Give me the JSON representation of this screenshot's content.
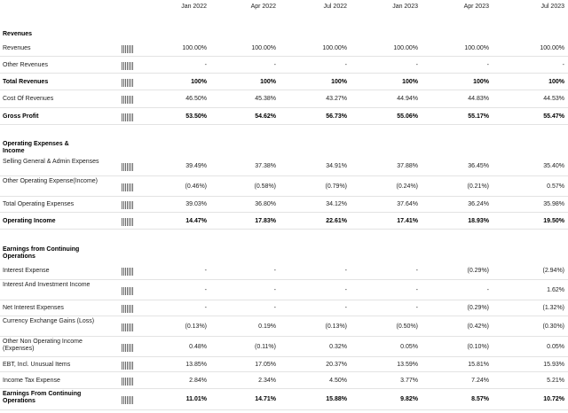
{
  "columns": [
    "Jan 2022",
    "Apr 2022",
    "Jul 2022",
    "Jan 2023",
    "Apr 2023",
    "Jul 2023"
  ],
  "sections": [
    {
      "title": "Revenues",
      "rows": [
        {
          "label": "Revenues",
          "values": [
            "100.00%",
            "100.00%",
            "100.00%",
            "100.00%",
            "100.00%",
            "100.00%"
          ],
          "bold": false
        },
        {
          "label": "Other Revenues",
          "values": [
            "-",
            "-",
            "-",
            "-",
            "-",
            "-"
          ],
          "bold": false
        },
        {
          "label": "Total Revenues",
          "values": [
            "100%",
            "100%",
            "100%",
            "100%",
            "100%",
            "100%"
          ],
          "bold": true
        },
        {
          "label": "Cost Of Revenues",
          "values": [
            "46.50%",
            "45.38%",
            "43.27%",
            "44.94%",
            "44.83%",
            "44.53%"
          ],
          "bold": false
        },
        {
          "label": "Gross Profit",
          "values": [
            "53.50%",
            "54.62%",
            "56.73%",
            "55.06%",
            "55.17%",
            "55.47%"
          ],
          "bold": true
        }
      ]
    },
    {
      "title": "Operating Expenses & Income",
      "rows": [
        {
          "label": "Selling General & Admin Expenses",
          "values": [
            "39.49%",
            "37.38%",
            "34.91%",
            "37.88%",
            "36.45%",
            "35.40%"
          ],
          "bold": false
        },
        {
          "label": "Other Operating Expense(Income)",
          "values": [
            "(0.46%)",
            "(0.58%)",
            "(0.79%)",
            "(0.24%)",
            "(0.21%)",
            "0.57%"
          ],
          "bold": false
        },
        {
          "label": "Total Operating Expenses",
          "values": [
            "39.03%",
            "36.80%",
            "34.12%",
            "37.64%",
            "36.24%",
            "35.98%"
          ],
          "bold": false
        },
        {
          "label": "Operating Income",
          "values": [
            "14.47%",
            "17.83%",
            "22.61%",
            "17.41%",
            "18.93%",
            "19.50%"
          ],
          "bold": true
        }
      ]
    },
    {
      "title": "Earnings from Continuing Operations",
      "rows": [
        {
          "label": "Interest Expense",
          "values": [
            "-",
            "-",
            "-",
            "-",
            "(0.29%)",
            "(2.94%)"
          ],
          "bold": false
        },
        {
          "label": "Interest And Investment Income",
          "values": [
            "-",
            "-",
            "-",
            "-",
            "-",
            "1.62%"
          ],
          "bold": false
        },
        {
          "label": "Net Interest Expenses",
          "values": [
            "-",
            "-",
            "-",
            "-",
            "(0.29%)",
            "(1.32%)"
          ],
          "bold": false
        },
        {
          "label": "Currency Exchange Gains (Loss)",
          "values": [
            "(0.13%)",
            "0.19%",
            "(0.13%)",
            "(0.50%)",
            "(0.42%)",
            "(0.30%)"
          ],
          "bold": false
        },
        {
          "label": "Other Non Operating Income (Expenses)",
          "values": [
            "0.48%",
            "(0.11%)",
            "0.32%",
            "0.05%",
            "(0.10%)",
            "0.05%"
          ],
          "bold": false
        },
        {
          "label": "EBT, Incl. Unusual Items",
          "values": [
            "13.85%",
            "17.05%",
            "20.37%",
            "13.59%",
            "15.81%",
            "15.93%"
          ],
          "bold": false
        },
        {
          "label": "Income Tax Expense",
          "values": [
            "2.84%",
            "2.34%",
            "4.50%",
            "3.77%",
            "7.24%",
            "5.21%"
          ],
          "bold": false
        },
        {
          "label": "Earnings From Continuing Operations",
          "values": [
            "11.01%",
            "14.71%",
            "15.88%",
            "9.82%",
            "8.57%",
            "10.72%"
          ],
          "bold": true
        }
      ]
    }
  ]
}
